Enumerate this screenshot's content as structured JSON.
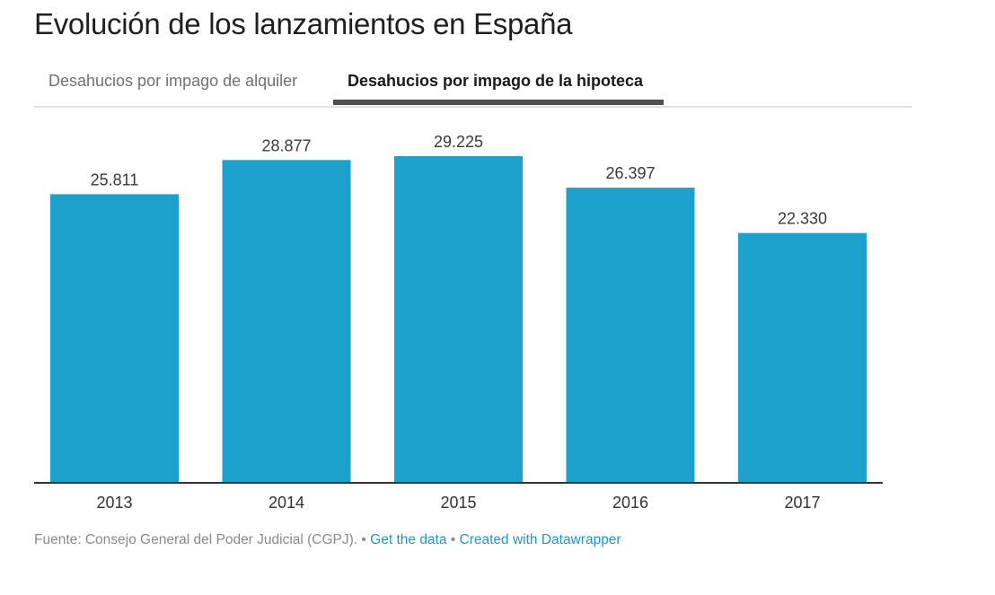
{
  "header": {
    "title": "Evolución de los lanzamientos en España"
  },
  "tabs": [
    {
      "label": "Desahucios por impago de alquiler",
      "active": false
    },
    {
      "label": "Desahucios por impago de la hipoteca",
      "active": true
    }
  ],
  "colors": {
    "bar": "#1ba1cb",
    "link": "#1d98c4",
    "axis": "#333333"
  },
  "chart_data": {
    "type": "bar",
    "title": "Evolución de los lanzamientos en España",
    "subtitle": "Desahucios por impago de la hipoteca",
    "categories": [
      "2013",
      "2014",
      "2015",
      "2016",
      "2017"
    ],
    "values": [
      25811,
      28877,
      29225,
      26397,
      22330
    ],
    "value_labels": [
      "25.811",
      "28.877",
      "29.225",
      "26.397",
      "22.330"
    ],
    "xlabel": "",
    "ylabel": "",
    "ylim": [
      0,
      29225
    ],
    "grid": false,
    "legend": "none"
  },
  "footer": {
    "source": "Fuente: Consejo General del Poder Judicial (CGPJ).",
    "separator": " • ",
    "get_data": "Get the data",
    "created_with": "Created with Datawrapper"
  }
}
